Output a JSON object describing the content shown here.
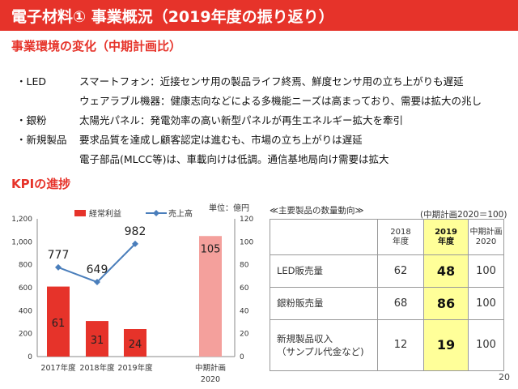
{
  "title": "電子材料① 事業概況（2019年度の振り返り）",
  "section1": "事業環境の変化（中期計画比）",
  "env": {
    "led_label": "・LED",
    "led_line1": "スマートフォン：近接センサ用の製品ライフ終焉、鮮度センサ用の立ち上がりも遅延",
    "led_line2": "ウェアラブル機器：健康志向などによる多機能ニーズは高まっており、需要は拡大の兆し",
    "silver_label": "・銀粉",
    "silver_line": "太陽光パネル：発電効率の高い新型パネルが再生エネルギー拡大を牽引",
    "new_label": "・新規製品",
    "new_line1": "要求品質を達成し顧客認定は進むも、市場の立ち上がりは遅延",
    "new_line2": "電子部品(MLCC等)は、車載向けは低調。通信基地局向け需要は拡大"
  },
  "section2": "KPIの進捗",
  "chart_data": {
    "type": "bar+line",
    "unit_label": "単位：億円",
    "categories": [
      "2017年度",
      "2018年度",
      "2019年度",
      "中期計画\n2020"
    ],
    "category_line1": [
      "2017年度",
      "2018年度",
      "2019年度",
      "中期計画"
    ],
    "category_line2": [
      "",
      "",
      "",
      "2020"
    ],
    "series": [
      {
        "name": "経常利益",
        "type": "bar",
        "axis": "right",
        "values": [
          61,
          31,
          24,
          105
        ],
        "colors": [
          "#e6332a",
          "#e6332a",
          "#e6332a",
          "#f4a09c"
        ]
      },
      {
        "name": "売上高",
        "type": "line",
        "axis": "left",
        "values": [
          777,
          649,
          982,
          null
        ],
        "color": "#4a7ebb"
      }
    ],
    "left_axis": {
      "min": 0,
      "max": 1200,
      "ticks": [
        "0",
        "200",
        "400",
        "600",
        "800",
        "1,000",
        "1,200"
      ]
    },
    "right_axis": {
      "min": 0,
      "max": 120,
      "ticks": [
        "0",
        "20",
        "40",
        "60",
        "80",
        "100",
        "120"
      ]
    }
  },
  "table": {
    "caption": "≪主要製品の数量動向≫",
    "note": "(中期計画2020＝100)",
    "headers": [
      {
        "line1": "",
        "line2": ""
      },
      {
        "line1": "2018",
        "line2": "年度"
      },
      {
        "line1": "2019",
        "line2": "年度"
      },
      {
        "line1": "中期計画",
        "line2": "2020"
      }
    ],
    "rows": [
      {
        "name1": "LED販売量",
        "name2": "",
        "y2018": "62",
        "y2019": "48",
        "plan": "100"
      },
      {
        "name1": "銀粉販売量",
        "name2": "",
        "y2018": "68",
        "y2019": "86",
        "plan": "100"
      },
      {
        "name1": "新規製品収入",
        "name2": "（サンプル代金など)",
        "y2018": "12",
        "y2019": "19",
        "plan": "100"
      }
    ]
  },
  "page_number": "20"
}
